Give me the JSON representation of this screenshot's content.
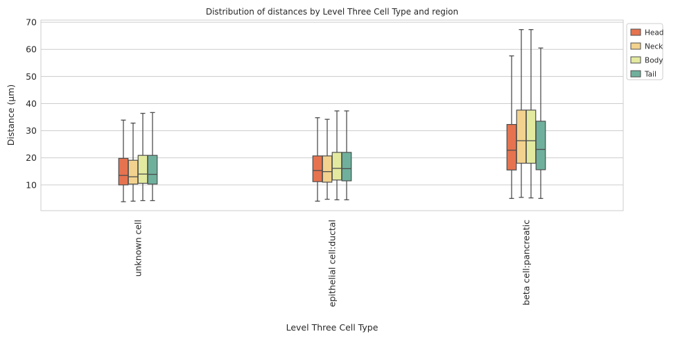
{
  "chart_data": {
    "type": "boxplot",
    "title": "Distribution of distances by Level Three Cell Type and region",
    "xlabel": "Level Three Cell Type",
    "ylabel": "Distance (µm)",
    "ylim": [
      0.5,
      70.8
    ],
    "yticks": [
      10,
      20,
      30,
      40,
      50,
      60,
      70
    ],
    "grid": "horizontal",
    "legend_position": "top-right",
    "categories": [
      "unknown cell",
      "epithelial cell:ductal",
      "beta cell:pancreatic"
    ],
    "series": [
      {
        "name": "Head",
        "color": "#e5734f",
        "boxes": [
          {
            "whislo": 3.8,
            "q1": 10.0,
            "med": 13.5,
            "q3": 19.8,
            "whishi": 33.9
          },
          {
            "whislo": 4.0,
            "q1": 11.2,
            "med": 15.3,
            "q3": 20.7,
            "whishi": 34.8
          },
          {
            "whislo": 5.0,
            "q1": 15.5,
            "med": 22.8,
            "q3": 32.3,
            "whishi": 57.6
          }
        ]
      },
      {
        "name": "Neck",
        "color": "#f2d28e",
        "boxes": [
          {
            "whislo": 4.0,
            "q1": 10.3,
            "med": 13.0,
            "q3": 19.1,
            "whishi": 32.8
          },
          {
            "whislo": 4.7,
            "q1": 11.0,
            "med": 14.9,
            "q3": 20.7,
            "whishi": 34.2
          },
          {
            "whislo": 5.4,
            "q1": 18.0,
            "med": 26.3,
            "q3": 37.6,
            "whishi": 67.3
          }
        ]
      },
      {
        "name": "Body",
        "color": "#e3eaa0",
        "boxes": [
          {
            "whislo": 4.2,
            "q1": 10.6,
            "med": 14.0,
            "q3": 20.9,
            "whishi": 36.4
          },
          {
            "whislo": 4.5,
            "q1": 11.8,
            "med": 16.1,
            "q3": 22.0,
            "whishi": 37.3
          },
          {
            "whislo": 5.2,
            "q1": 18.0,
            "med": 26.3,
            "q3": 37.6,
            "whishi": 67.3
          }
        ]
      },
      {
        "name": "Tail",
        "color": "#6fb09c",
        "boxes": [
          {
            "whislo": 4.2,
            "q1": 10.3,
            "med": 13.9,
            "q3": 20.9,
            "whishi": 36.7
          },
          {
            "whislo": 4.5,
            "q1": 11.5,
            "med": 16.0,
            "q3": 22.0,
            "whishi": 37.3
          },
          {
            "whislo": 5.0,
            "q1": 15.6,
            "med": 23.1,
            "q3": 33.5,
            "whishi": 60.5
          }
        ]
      }
    ]
  }
}
